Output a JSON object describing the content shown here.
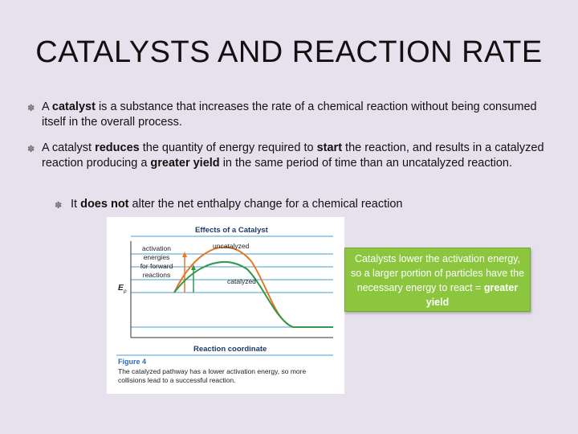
{
  "title": "CATALYSTS AND REACTION RATE",
  "bullets": [
    {
      "pre": "A ",
      "bold": "catalyst",
      "post": " is a substance that increases the rate of a chemical reaction without being consumed itself in the overall process."
    },
    {
      "p1": "A catalyst ",
      "b1": "reduces",
      "p2": " the quantity of energy required to ",
      "b2": "start",
      "p3": " the reaction, and results in a catalyzed reaction producing a ",
      "b3": "greater yield",
      "p4": " in the same period of time than an uncatalyzed reaction."
    }
  ],
  "sub_bullet": {
    "pre": "It ",
    "bold": "does not",
    "post": " alter the net enthalpy change for a chemical reaction"
  },
  "figure": {
    "heading": "Effects of a Catalyst",
    "label_activation": [
      "activation",
      "energies",
      "for forward",
      "reactions"
    ],
    "label_uncatalyzed": "uncatalyzed",
    "label_catalyzed": "catalyzed",
    "y_axis": "E",
    "y_axis_sub": "p",
    "x_axis": "Reaction coordinate",
    "caption_title": "Figure 4",
    "caption_line1": "The catalyzed pathway has a lower activation energy, so more",
    "caption_line2": "collisions lead to a successful reaction."
  },
  "callout": {
    "text": "Catalysts lower the activation energy, so a larger portion of particles have the necessary energy to react = ",
    "bold": "greater yield"
  },
  "colors": {
    "background": "#e6e1ec",
    "callout": "#8cc63f",
    "uncatalyzed_curve": "#e87722",
    "catalyzed_curve": "#2e9a4a",
    "grid": "#4a9fd8",
    "figure_heading": "#1a3a6b",
    "figure_caption_title": "#2a6fb8"
  }
}
